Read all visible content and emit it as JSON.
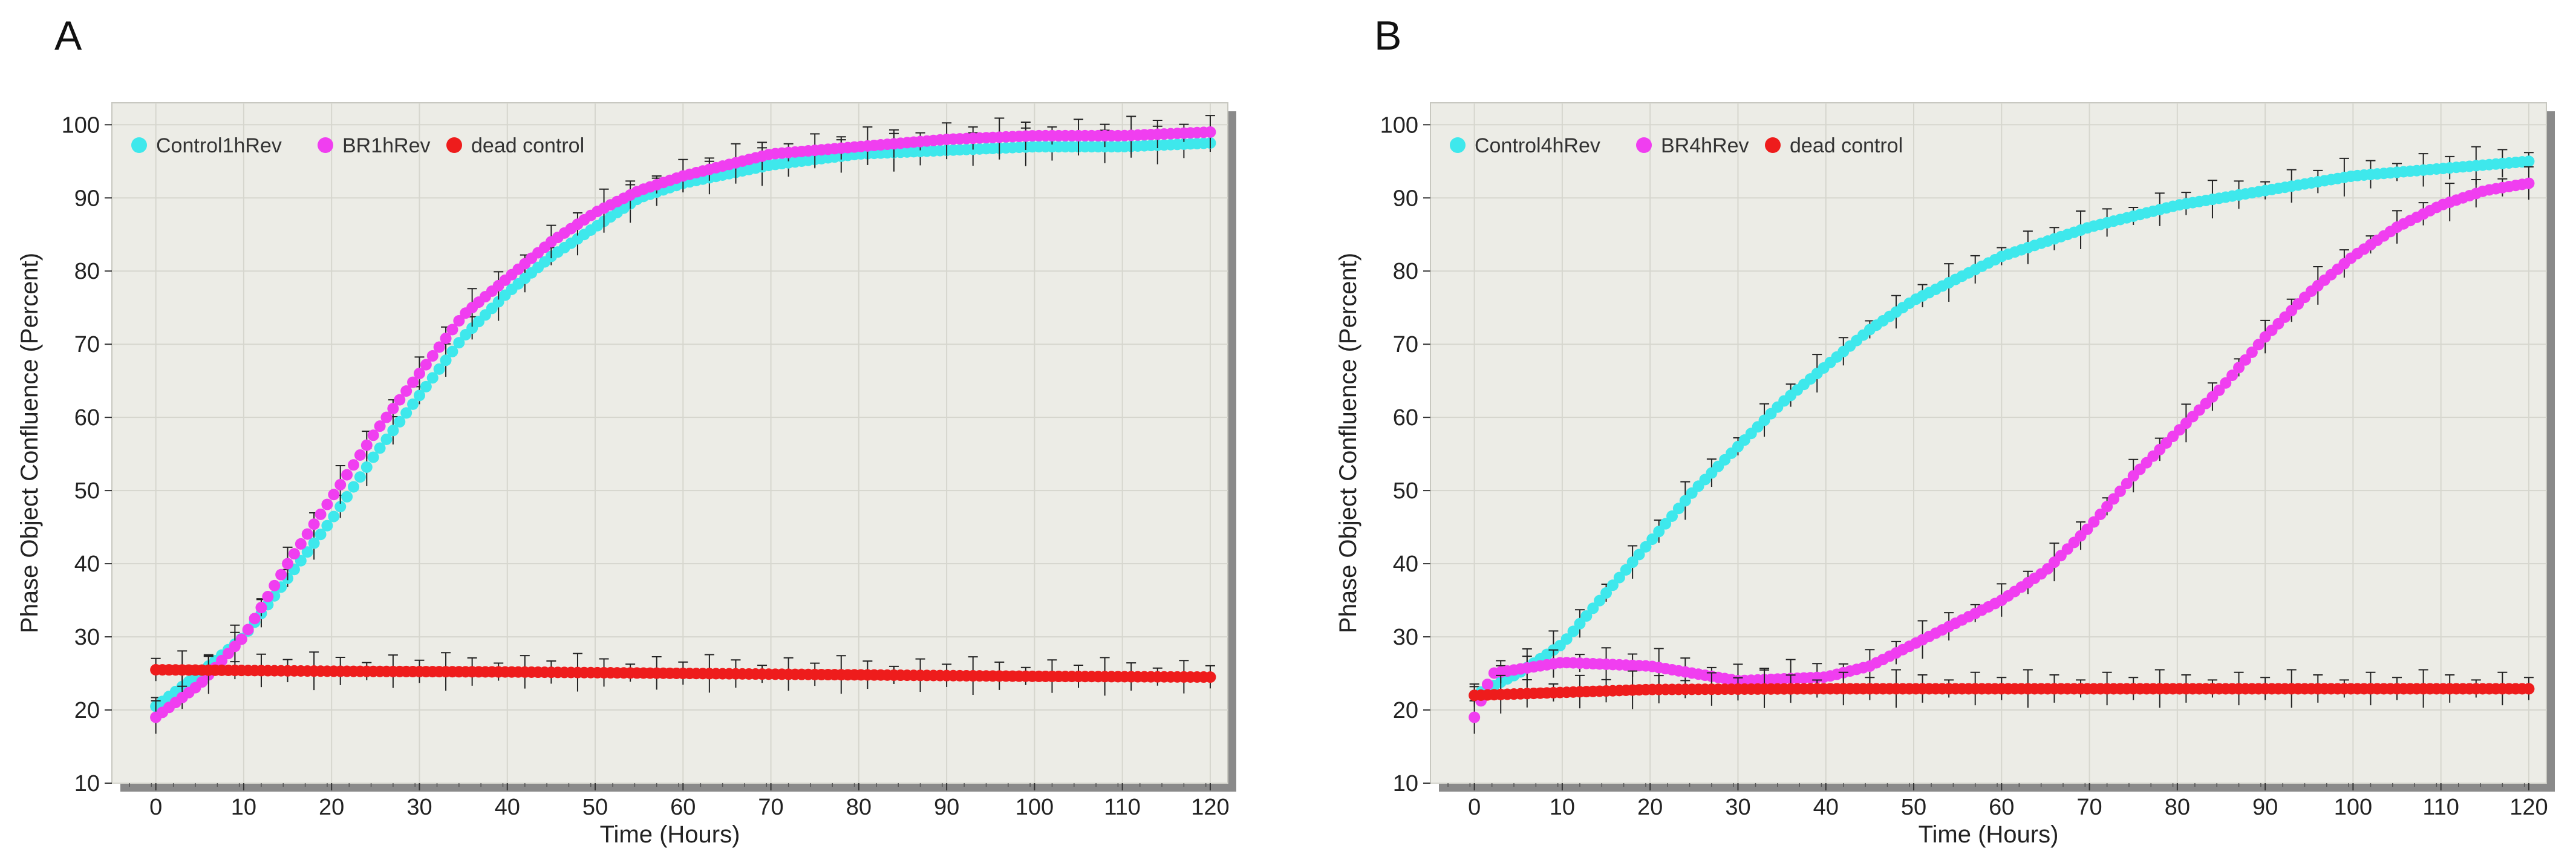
{
  "figure": {
    "panel_a_label": "A",
    "panel_b_label": "B"
  },
  "chart_data": [
    {
      "type": "scatter",
      "panel": "A",
      "title": "",
      "xlabel": "Time (Hours)",
      "ylabel": "Phase Object Confluence (Percent)",
      "xlim": [
        -5,
        122
      ],
      "ylim": [
        10,
        103
      ],
      "xticks": [
        0,
        10,
        20,
        30,
        40,
        50,
        60,
        70,
        80,
        90,
        100,
        110,
        120
      ],
      "yticks": [
        10,
        20,
        30,
        40,
        50,
        60,
        70,
        80,
        90,
        100
      ],
      "grid": true,
      "legend_position": "top-left",
      "series": [
        {
          "name": "Control1hRev",
          "color": "#3ee8ec",
          "x": [
            0,
            5,
            10,
            15,
            20,
            25,
            30,
            35,
            40,
            45,
            50,
            55,
            60,
            70,
            80,
            90,
            100,
            110,
            120
          ],
          "y": [
            20.5,
            25,
            30,
            38,
            46,
            55,
            63,
            71,
            77,
            82,
            86,
            90,
            92,
            94.5,
            96,
            96.5,
            97,
            97,
            97.5
          ]
        },
        {
          "name": "BR1hRev",
          "color": "#f03ef0",
          "x": [
            0,
            5,
            10,
            15,
            20,
            25,
            30,
            35,
            40,
            45,
            50,
            55,
            60,
            70,
            80,
            90,
            100,
            110,
            120
          ],
          "y": [
            19,
            23.5,
            30,
            40,
            49,
            58,
            66,
            74,
            79,
            84,
            88,
            91,
            93,
            96,
            97,
            98,
            98.5,
            98.5,
            99
          ]
        },
        {
          "name": "dead control",
          "color": "#ee1c1c",
          "x": [
            0,
            20,
            40,
            60,
            80,
            100,
            120
          ],
          "y": [
            25.5,
            25.3,
            25.2,
            25,
            24.8,
            24.6,
            24.5
          ]
        }
      ]
    },
    {
      "type": "scatter",
      "panel": "B",
      "title": "",
      "xlabel": "Time (Hours)",
      "ylabel": "Phase Object Confluence (Percent)",
      "xlim": [
        -5,
        122
      ],
      "ylim": [
        10,
        103
      ],
      "xticks": [
        0,
        10,
        20,
        30,
        40,
        50,
        60,
        70,
        80,
        90,
        100,
        110,
        120
      ],
      "yticks": [
        10,
        20,
        30,
        40,
        50,
        60,
        70,
        80,
        90,
        100
      ],
      "grid": true,
      "legend_position": "top-left",
      "series": [
        {
          "name": "Control4hRev",
          "color": "#3ee8ec",
          "x": [
            0,
            5,
            10,
            15,
            20,
            25,
            30,
            35,
            40,
            45,
            50,
            55,
            60,
            70,
            80,
            90,
            100,
            110,
            120
          ],
          "y": [
            22,
            25,
            29,
            36,
            43,
            50,
            56,
            62,
            67,
            72,
            76,
            79,
            82,
            86,
            89,
            91,
            93,
            94,
            95
          ]
        },
        {
          "name": "BR4hRev",
          "color": "#f03ef0",
          "x": [
            0,
            2,
            10,
            20,
            30,
            40,
            45,
            50,
            55,
            60,
            65,
            70,
            75,
            80,
            85,
            90,
            95,
            100,
            105,
            110,
            115,
            120
          ],
          "y": [
            19,
            25,
            26.5,
            26,
            24,
            24.5,
            26,
            29,
            32,
            35,
            39,
            45,
            52,
            58,
            64,
            71,
            77,
            82,
            86,
            89,
            91,
            92
          ]
        },
        {
          "name": "dead control",
          "color": "#ee1c1c",
          "x": [
            0,
            20,
            40,
            60,
            80,
            100,
            120
          ],
          "y": [
            22,
            22.8,
            22.9,
            22.9,
            22.9,
            22.9,
            22.9
          ]
        }
      ]
    }
  ]
}
